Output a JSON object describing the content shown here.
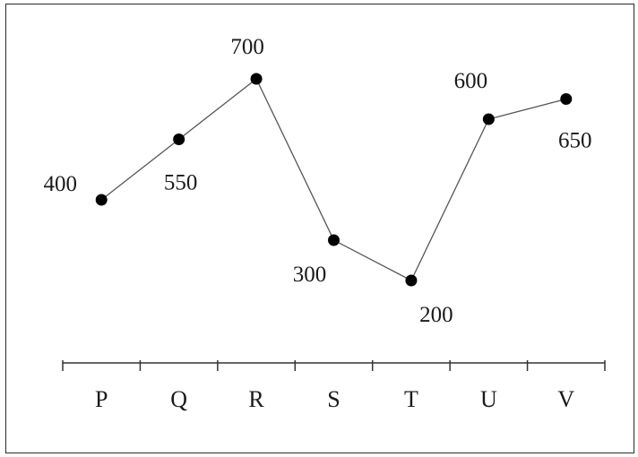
{
  "chart_data": {
    "type": "line",
    "categories": [
      "P",
      "Q",
      "R",
      "S",
      "T",
      "U",
      "V"
    ],
    "values": [
      400,
      550,
      700,
      300,
      200,
      600,
      650
    ],
    "data_labels": [
      "400",
      "550",
      "700",
      "300",
      "200",
      "600",
      "650"
    ],
    "title": "",
    "xlabel": "",
    "ylabel": "",
    "y_axis_visible": false,
    "grid": false,
    "legend": "none",
    "line_color": "#555555",
    "marker_color": "#000000"
  }
}
